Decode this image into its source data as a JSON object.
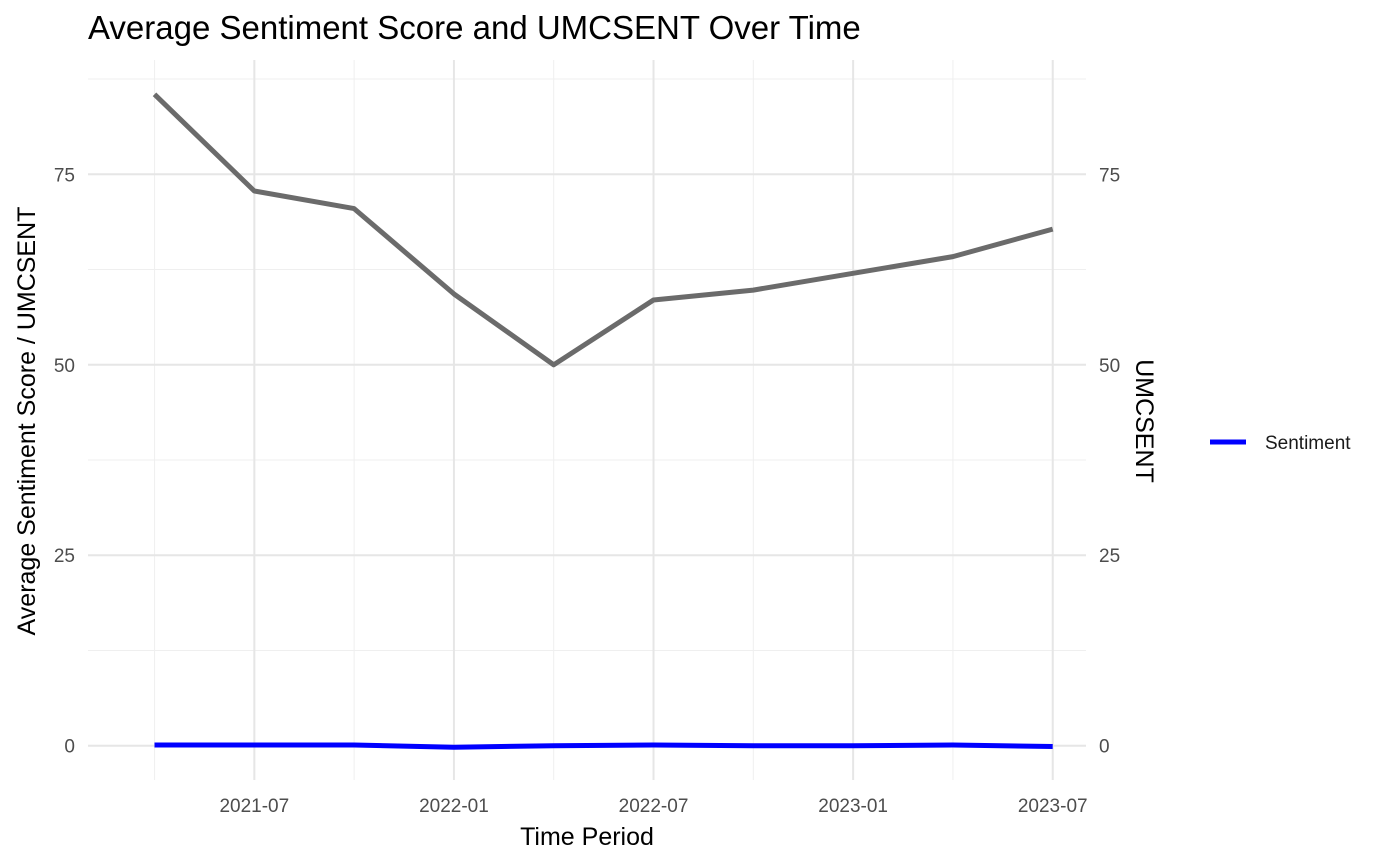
{
  "chart_data": {
    "type": "line",
    "title": "Average Sentiment Score and UMCSENT Over Time",
    "xlabel": "Time Period",
    "ylabel": "Average Sentiment Score / UMCSENT",
    "y2label": "UMCSENT",
    "x": [
      "2021-04",
      "2021-07",
      "2021-10",
      "2022-01",
      "2022-04",
      "2022-07",
      "2022-10",
      "2023-01",
      "2023-04",
      "2023-07"
    ],
    "x_ticks": [
      "2021-07",
      "2022-01",
      "2022-07",
      "2023-01",
      "2023-07"
    ],
    "xlim": [
      "2021-02",
      "2023-08"
    ],
    "y_ticks": [
      0,
      25,
      50,
      75
    ],
    "ylim": [
      -4.5,
      90
    ],
    "grid": true,
    "legend_position": "right",
    "series": [
      {
        "name": "Sentiment",
        "color": "#0000ff",
        "values": [
          0.1,
          0.1,
          0.1,
          -0.2,
          0.0,
          0.1,
          0.0,
          0.0,
          0.1,
          -0.1
        ]
      },
      {
        "color": "#6b6b6b",
        "values": [
          85.5,
          72.8,
          70.5,
          59.3,
          50.0,
          58.5,
          59.8,
          62.0,
          64.2,
          67.8
        ]
      }
    ],
    "legend": [
      {
        "label": "Sentiment",
        "color": "#0000ff"
      }
    ]
  }
}
